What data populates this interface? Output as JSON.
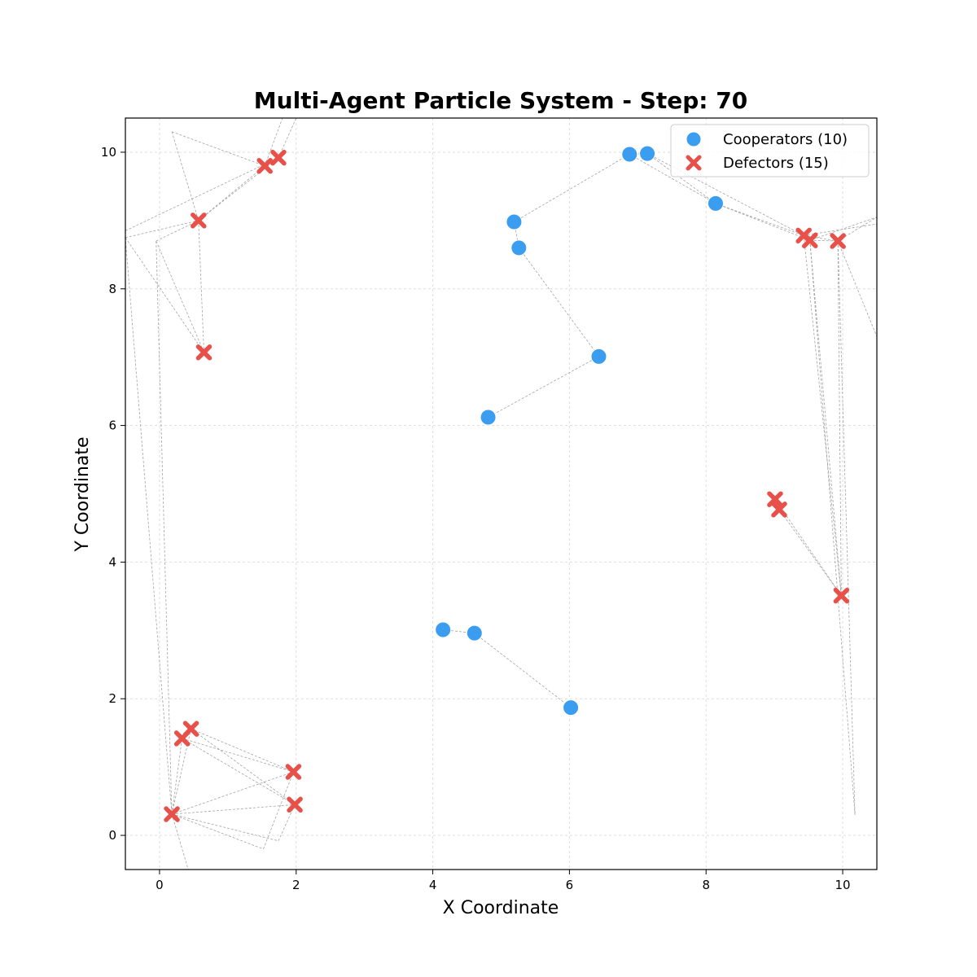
{
  "chart_data": {
    "type": "scatter",
    "title": "Multi-Agent Particle System - Step: 70",
    "xlabel": "X Coordinate",
    "ylabel": "Y Coordinate",
    "xlim": [
      -0.5,
      10.5
    ],
    "ylim": [
      -0.5,
      10.5
    ],
    "xticks": [
      0,
      2,
      4,
      6,
      8,
      10
    ],
    "yticks": [
      0,
      2,
      4,
      6,
      8,
      10
    ],
    "grid": true,
    "legend_position": "top-right",
    "series": [
      {
        "name": "Cooperators (10)",
        "marker": "circle",
        "color": "#3a9df0",
        "points": [
          [
            6.88,
            9.97
          ],
          [
            7.14,
            9.98
          ],
          [
            8.14,
            9.25
          ],
          [
            5.19,
            8.98
          ],
          [
            5.26,
            8.6
          ],
          [
            6.43,
            7.01
          ],
          [
            4.81,
            6.12
          ],
          [
            4.15,
            3.01
          ],
          [
            4.61,
            2.96
          ],
          [
            6.02,
            1.87
          ]
        ]
      },
      {
        "name": "Defectors (15)",
        "marker": "x",
        "color": "#e8504a",
        "points": [
          [
            1.74,
            9.92
          ],
          [
            1.54,
            9.8
          ],
          [
            0.57,
            9.0
          ],
          [
            0.65,
            7.07
          ],
          [
            9.43,
            8.78
          ],
          [
            9.52,
            8.71
          ],
          [
            9.93,
            8.7
          ],
          [
            9.01,
            4.92
          ],
          [
            9.07,
            4.77
          ],
          [
            9.98,
            3.51
          ],
          [
            0.46,
            1.56
          ],
          [
            0.33,
            1.42
          ],
          [
            1.96,
            0.93
          ],
          [
            1.98,
            0.45
          ],
          [
            0.18,
            0.31
          ]
        ]
      }
    ],
    "connections": [
      [
        [
          5.19,
          8.98
        ],
        [
          5.26,
          8.6
        ]
      ],
      [
        [
          5.19,
          8.98
        ],
        [
          6.88,
          9.97
        ]
      ],
      [
        [
          6.88,
          9.97
        ],
        [
          7.14,
          9.98
        ]
      ],
      [
        [
          7.14,
          9.98
        ],
        [
          8.14,
          9.25
        ]
      ],
      [
        [
          6.88,
          9.97
        ],
        [
          8.14,
          9.25
        ]
      ],
      [
        [
          8.14,
          9.25
        ],
        [
          9.43,
          8.78
        ]
      ],
      [
        [
          8.14,
          9.25
        ],
        [
          9.52,
          8.71
        ]
      ],
      [
        [
          7.14,
          9.98
        ],
        [
          9.43,
          8.78
        ]
      ],
      [
        [
          5.26,
          8.6
        ],
        [
          6.43,
          7.01
        ]
      ],
      [
        [
          6.43,
          7.01
        ],
        [
          4.81,
          6.12
        ]
      ],
      [
        [
          4.15,
          3.01
        ],
        [
          4.61,
          2.96
        ]
      ],
      [
        [
          4.61,
          2.96
        ],
        [
          6.02,
          1.87
        ]
      ],
      [
        [
          9.43,
          8.78
        ],
        [
          9.52,
          8.71
        ]
      ],
      [
        [
          9.52,
          8.71
        ],
        [
          9.93,
          8.7
        ]
      ],
      [
        [
          9.43,
          8.78
        ],
        [
          9.93,
          8.7
        ]
      ],
      [
        [
          9.93,
          8.7
        ],
        [
          10.5,
          9.05
        ]
      ],
      [
        [
          9.52,
          8.71
        ],
        [
          10.5,
          9.05
        ]
      ],
      [
        [
          9.43,
          8.78
        ],
        [
          10.5,
          8.95
        ]
      ],
      [
        [
          9.93,
          8.7
        ],
        [
          10.5,
          7.3
        ]
      ],
      [
        [
          9.43,
          8.78
        ],
        [
          9.98,
          3.51
        ]
      ],
      [
        [
          9.52,
          8.71
        ],
        [
          9.98,
          3.51
        ]
      ],
      [
        [
          9.93,
          8.7
        ],
        [
          9.98,
          3.51
        ]
      ],
      [
        [
          9.01,
          4.92
        ],
        [
          9.98,
          3.51
        ]
      ],
      [
        [
          9.07,
          4.77
        ],
        [
          9.98,
          3.51
        ]
      ],
      [
        [
          9.01,
          4.92
        ],
        [
          9.07,
          4.77
        ]
      ],
      [
        [
          9.52,
          8.71
        ],
        [
          10.18,
          0.3
        ]
      ],
      [
        [
          9.93,
          8.7
        ],
        [
          10.18,
          0.3
        ]
      ],
      [
        [
          1.74,
          9.92
        ],
        [
          1.54,
          9.8
        ]
      ],
      [
        [
          1.54,
          9.8
        ],
        [
          0.57,
          9.0
        ]
      ],
      [
        [
          1.74,
          9.92
        ],
        [
          0.57,
          9.0
        ]
      ],
      [
        [
          1.54,
          9.8
        ],
        [
          1.8,
          10.5
        ]
      ],
      [
        [
          1.74,
          9.92
        ],
        [
          2.0,
          10.5
        ]
      ],
      [
        [
          0.18,
          10.3
        ],
        [
          1.54,
          9.8
        ]
      ],
      [
        [
          0.18,
          10.3
        ],
        [
          0.57,
          9.0
        ]
      ],
      [
        [
          0.57,
          9.0
        ],
        [
          0.65,
          7.07
        ]
      ],
      [
        [
          -0.5,
          8.75
        ],
        [
          0.57,
          9.0
        ]
      ],
      [
        [
          -0.5,
          8.85
        ],
        [
          1.74,
          9.92
        ]
      ],
      [
        [
          -0.05,
          8.7
        ],
        [
          0.57,
          9.0
        ]
      ],
      [
        [
          -0.05,
          8.7
        ],
        [
          0.65,
          7.07
        ]
      ],
      [
        [
          -0.5,
          8.75
        ],
        [
          0.65,
          7.07
        ]
      ],
      [
        [
          -0.05,
          8.7
        ],
        [
          0.18,
          0.31
        ]
      ],
      [
        [
          -0.5,
          8.75
        ],
        [
          0.18,
          0.31
        ]
      ],
      [
        [
          0.46,
          1.56
        ],
        [
          0.33,
          1.42
        ]
      ],
      [
        [
          0.46,
          1.56
        ],
        [
          1.96,
          0.93
        ]
      ],
      [
        [
          0.33,
          1.42
        ],
        [
          1.96,
          0.93
        ]
      ],
      [
        [
          0.46,
          1.56
        ],
        [
          1.98,
          0.45
        ]
      ],
      [
        [
          0.33,
          1.42
        ],
        [
          1.98,
          0.45
        ]
      ],
      [
        [
          0.18,
          0.31
        ],
        [
          0.46,
          1.56
        ]
      ],
      [
        [
          0.18,
          0.31
        ],
        [
          0.33,
          1.42
        ]
      ],
      [
        [
          0.18,
          0.31
        ],
        [
          1.96,
          0.93
        ]
      ],
      [
        [
          0.18,
          0.31
        ],
        [
          1.98,
          0.45
        ]
      ],
      [
        [
          0.18,
          0.31
        ],
        [
          1.52,
          -0.2
        ]
      ],
      [
        [
          0.18,
          0.31
        ],
        [
          1.74,
          -0.08
        ]
      ],
      [
        [
          1.52,
          -0.2
        ],
        [
          1.96,
          0.93
        ]
      ],
      [
        [
          1.74,
          -0.08
        ],
        [
          1.98,
          0.45
        ]
      ],
      [
        [
          0.18,
          0.31
        ],
        [
          0.42,
          -0.5
        ]
      ]
    ]
  }
}
